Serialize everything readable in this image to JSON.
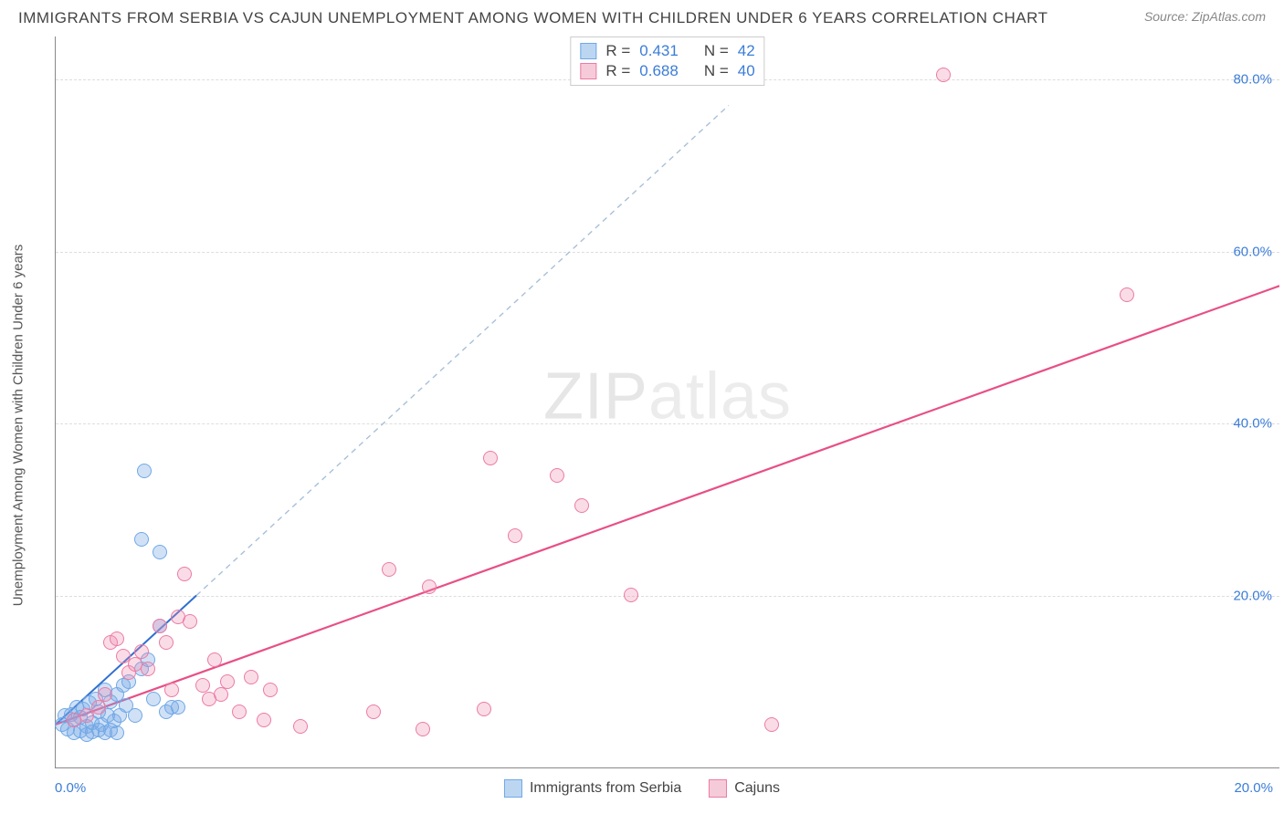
{
  "title": "IMMIGRANTS FROM SERBIA VS CAJUN UNEMPLOYMENT AMONG WOMEN WITH CHILDREN UNDER 6 YEARS CORRELATION CHART",
  "source": "Source: ZipAtlas.com",
  "watermark_a": "ZIP",
  "watermark_b": "atlas",
  "chart": {
    "type": "scatter",
    "background_color": "#ffffff",
    "grid_color": "#dddddd",
    "axis_color": "#888888",
    "tick_label_color": "#3b7dd8",
    "axis_label_color": "#555555",
    "y_axis_label": "Unemployment Among Women with Children Under 6 years",
    "xlim": [
      0.0,
      20.0
    ],
    "ylim": [
      0.0,
      85.0
    ],
    "y_ticks": [
      20.0,
      40.0,
      60.0,
      80.0
    ],
    "y_tick_labels": [
      "20.0%",
      "40.0%",
      "60.0%",
      "80.0%"
    ],
    "x_origin_label": "0.0%",
    "x_max_label": "20.0%",
    "marker_radius": 8,
    "marker_stroke_width": 1.5,
    "series": [
      {
        "name": "Immigrants from Serbia",
        "stats": {
          "R": "0.431",
          "N": "42"
        },
        "marker_fill": "rgba(120,170,230,0.35)",
        "marker_stroke": "#6fa8e6",
        "swatch_fill": "#bcd6f2",
        "swatch_border": "#6fa8e6",
        "trendline": {
          "x1": 0.0,
          "y1": 5.0,
          "x2": 2.3,
          "y2": 20.0,
          "stroke": "#2f6fd0",
          "width": 2,
          "dash": "none"
        },
        "trendline_ext": {
          "x1": 2.3,
          "y1": 20.0,
          "x2": 11.0,
          "y2": 77.0,
          "stroke": "#a8c0da",
          "width": 1.4,
          "dash": "6,5"
        },
        "points": [
          [
            0.1,
            5.0
          ],
          [
            0.15,
            6.0
          ],
          [
            0.2,
            4.5
          ],
          [
            0.25,
            6.2
          ],
          [
            0.3,
            5.5
          ],
          [
            0.35,
            7.0
          ],
          [
            0.4,
            5.8
          ],
          [
            0.45,
            6.8
          ],
          [
            0.5,
            4.8
          ],
          [
            0.55,
            7.5
          ],
          [
            0.6,
            5.2
          ],
          [
            0.65,
            8.0
          ],
          [
            0.7,
            6.5
          ],
          [
            0.75,
            5.0
          ],
          [
            0.8,
            9.0
          ],
          [
            0.85,
            6.0
          ],
          [
            0.9,
            7.6
          ],
          [
            0.95,
            5.4
          ],
          [
            1.0,
            8.5
          ],
          [
            1.05,
            6.1
          ],
          [
            1.1,
            9.5
          ],
          [
            1.15,
            7.2
          ],
          [
            1.2,
            10.0
          ],
          [
            1.3,
            6.0
          ],
          [
            1.4,
            11.5
          ],
          [
            1.5,
            12.5
          ],
          [
            1.6,
            8.0
          ],
          [
            1.7,
            16.5
          ],
          [
            1.8,
            6.5
          ],
          [
            1.9,
            7.0
          ],
          [
            0.3,
            4.0
          ],
          [
            0.4,
            4.2
          ],
          [
            0.5,
            3.8
          ],
          [
            0.6,
            4.1
          ],
          [
            0.7,
            4.4
          ],
          [
            0.8,
            4.0
          ],
          [
            0.9,
            4.3
          ],
          [
            1.0,
            4.0
          ],
          [
            1.4,
            26.5
          ],
          [
            1.7,
            25.0
          ],
          [
            1.45,
            34.5
          ],
          [
            2.0,
            7.0
          ]
        ]
      },
      {
        "name": "Cajuns",
        "stats": {
          "R": "0.688",
          "N": "40"
        },
        "marker_fill": "rgba(240,140,175,0.30)",
        "marker_stroke": "#ec7ba5",
        "swatch_fill": "#f6cbd9",
        "swatch_border": "#ec7ba5",
        "trendline": {
          "x1": 0.0,
          "y1": 5.0,
          "x2": 20.0,
          "y2": 56.0,
          "stroke": "#e84f86",
          "width": 2.2,
          "dash": "none"
        },
        "points": [
          [
            0.3,
            5.5
          ],
          [
            0.5,
            6.0
          ],
          [
            0.7,
            7.0
          ],
          [
            0.8,
            8.5
          ],
          [
            0.9,
            14.5
          ],
          [
            1.0,
            15.0
          ],
          [
            1.1,
            13.0
          ],
          [
            1.2,
            11.0
          ],
          [
            1.3,
            12.0
          ],
          [
            1.4,
            13.5
          ],
          [
            1.5,
            11.5
          ],
          [
            1.7,
            16.5
          ],
          [
            1.8,
            14.5
          ],
          [
            1.9,
            9.0
          ],
          [
            2.0,
            17.5
          ],
          [
            2.1,
            22.5
          ],
          [
            2.2,
            17.0
          ],
          [
            2.4,
            9.5
          ],
          [
            2.5,
            8.0
          ],
          [
            2.6,
            12.5
          ],
          [
            2.7,
            8.5
          ],
          [
            2.8,
            10.0
          ],
          [
            3.0,
            6.5
          ],
          [
            3.2,
            10.5
          ],
          [
            3.4,
            5.5
          ],
          [
            3.5,
            9.0
          ],
          [
            4.0,
            4.8
          ],
          [
            5.2,
            6.5
          ],
          [
            5.45,
            23.0
          ],
          [
            6.0,
            4.5
          ],
          [
            6.1,
            21.0
          ],
          [
            7.0,
            6.8
          ],
          [
            7.1,
            36.0
          ],
          [
            7.5,
            27.0
          ],
          [
            8.2,
            34.0
          ],
          [
            8.6,
            30.5
          ],
          [
            9.4,
            20.1
          ],
          [
            11.7,
            5.0
          ],
          [
            14.5,
            80.5
          ],
          [
            17.5,
            55.0
          ]
        ]
      }
    ],
    "bottom_legend": [
      {
        "label": "Immigrants from Serbia",
        "swatch_fill": "#bcd6f2",
        "swatch_border": "#6fa8e6"
      },
      {
        "label": "Cajuns",
        "swatch_fill": "#f6cbd9",
        "swatch_border": "#ec7ba5"
      }
    ]
  }
}
